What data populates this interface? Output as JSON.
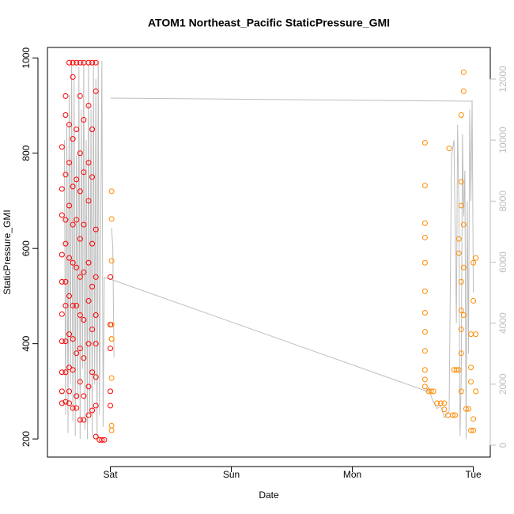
{
  "chart_data": {
    "type": "scatter",
    "title": "ATOM1 Northeast_Pacific StaticPressure_GMI",
    "xlabel": "Date",
    "ylabel": "StaticPressure_GMI",
    "xlim": [
      -0.52,
      3.14
    ],
    "xticks": [
      {
        "value": 0,
        "label": "Sat"
      },
      {
        "value": 1,
        "label": "Sun"
      },
      {
        "value": 2,
        "label": "Mon"
      },
      {
        "value": 3,
        "label": "Tue"
      }
    ],
    "ylim": [
      162,
      1022
    ],
    "yticks": [
      200,
      400,
      600,
      800,
      1000
    ],
    "y2lim": [
      -389,
      13037
    ],
    "y2ticks": [
      0,
      2000,
      4000,
      6000,
      8000,
      10000,
      12000
    ],
    "y2_axis_color": "#bebebe",
    "series": [
      {
        "color": "#ff0000",
        "x": [
          -0.4,
          -0.4,
          -0.4,
          -0.4,
          -0.4,
          -0.4,
          -0.4,
          -0.4,
          -0.4,
          -0.4,
          -0.37,
          -0.37,
          -0.37,
          -0.37,
          -0.37,
          -0.37,
          -0.37,
          -0.37,
          -0.37,
          -0.37,
          -0.34,
          -0.34,
          -0.34,
          -0.34,
          -0.34,
          -0.34,
          -0.34,
          -0.34,
          -0.34,
          -0.34,
          -0.31,
          -0.31,
          -0.31,
          -0.31,
          -0.31,
          -0.31,
          -0.31,
          -0.31,
          -0.31,
          -0.31,
          -0.28,
          -0.28,
          -0.28,
          -0.28,
          -0.28,
          -0.28,
          -0.28,
          -0.28,
          -0.28,
          -0.25,
          -0.25,
          -0.25,
          -0.25,
          -0.25,
          -0.25,
          -0.25,
          -0.25,
          -0.25,
          -0.25,
          -0.22,
          -0.22,
          -0.22,
          -0.22,
          -0.22,
          -0.22,
          -0.22,
          -0.22,
          -0.22,
          -0.18,
          -0.18,
          -0.18,
          -0.18,
          -0.18,
          -0.18,
          -0.18,
          -0.18,
          -0.18,
          -0.15,
          -0.15,
          -0.15,
          -0.15,
          -0.15,
          -0.15,
          -0.15,
          -0.15,
          -0.12,
          -0.12,
          -0.12,
          -0.12,
          -0.12,
          -0.12,
          -0.12,
          -0.12,
          -0.12,
          -0.09,
          -0.07,
          -0.05,
          0.0,
          0.0,
          0.0,
          0.0,
          0.0
        ],
        "values": [
          813,
          725,
          670,
          587,
          530,
          462,
          405,
          340,
          300,
          275,
          920,
          880,
          755,
          660,
          610,
          530,
          480,
          405,
          340,
          278,
          990,
          860,
          780,
          690,
          580,
          500,
          420,
          350,
          300,
          275,
          990,
          960,
          830,
          730,
          650,
          570,
          480,
          410,
          345,
          265,
          990,
          850,
          745,
          660,
          560,
          480,
          380,
          290,
          265,
          990,
          920,
          800,
          720,
          620,
          540,
          460,
          390,
          320,
          240,
          990,
          870,
          760,
          650,
          550,
          450,
          370,
          290,
          240,
          990,
          900,
          780,
          700,
          570,
          490,
          400,
          310,
          250,
          990,
          850,
          750,
          610,
          520,
          430,
          340,
          260,
          990,
          930,
          640,
          540,
          460,
          400,
          330,
          270,
          205,
          198,
          198,
          198,
          540,
          440,
          390,
          300,
          270
        ]
      },
      {
        "color": "#ff8c00",
        "x": [
          0.01,
          0.01,
          0.01,
          0.01,
          0.01,
          0.01,
          0.01,
          0.01,
          0.01,
          2.6,
          2.6,
          2.6,
          2.6,
          2.6,
          2.6,
          2.6,
          2.6,
          2.6,
          2.6,
          2.6,
          2.6,
          2.63,
          2.65,
          2.67,
          2.7,
          2.73,
          2.76,
          2.76,
          2.79,
          2.83,
          2.85,
          2.8,
          2.84,
          2.86,
          2.88,
          2.88,
          2.88,
          2.9,
          2.9,
          2.9,
          2.9,
          2.9,
          2.9,
          2.9,
          2.9,
          2.92,
          2.92,
          2.92,
          2.92,
          2.92,
          2.94,
          2.96,
          2.98,
          2.98,
          2.98,
          2.98,
          3.0,
          3.0,
          3.0,
          3.0,
          3.02,
          3.02,
          3.02
        ],
        "values": [
          720,
          662,
          574,
          440,
          410,
          410,
          328,
          228,
          218,
          822,
          732,
          653,
          623,
          570,
          510,
          465,
          425,
          385,
          345,
          325,
          310,
          300,
          300,
          300,
          275,
          275,
          275,
          262,
          250,
          250,
          250,
          810,
          345,
          345,
          345,
          590,
          620,
          880,
          740,
          690,
          530,
          470,
          430,
          380,
          300,
          970,
          930,
          650,
          560,
          460,
          263,
          263,
          420,
          350,
          320,
          218,
          570,
          490,
          242,
          218,
          580,
          420,
          300
        ]
      },
      {
        "type": "line",
        "axis": "y2",
        "color": "#bebebe",
        "x": [
          -0.38,
          -0.37,
          -0.36,
          -0.35,
          -0.34,
          -0.33,
          -0.32,
          -0.31,
          -0.3,
          -0.29,
          -0.28,
          -0.27,
          -0.26,
          -0.25,
          -0.24,
          -0.23,
          -0.22,
          -0.21,
          -0.2,
          -0.19,
          -0.18,
          -0.17,
          -0.16,
          -0.15,
          -0.14,
          -0.13,
          -0.12,
          -0.11,
          -0.1,
          -0.09,
          -0.07,
          -0.06,
          -0.05,
          0.0,
          2.62,
          2.63,
          2.66,
          2.7,
          2.73,
          2.76,
          2.8,
          2.82,
          2.84,
          2.86,
          2.87,
          2.88,
          2.89,
          2.9,
          2.91,
          2.92,
          2.93,
          2.94,
          2.95,
          2.96,
          2.97,
          2.98,
          2.99,
          3.0,
          null,
          0.01,
          0.02,
          0.03,
          null,
          0.0,
          2.99
        ],
        "values": [
          10000,
          1000,
          10500,
          400,
          11500,
          2000,
          12600,
          800,
          12000,
          300,
          9500,
          1500,
          12400,
          200,
          11000,
          2500,
          12600,
          500,
          10000,
          200,
          12500,
          1000,
          11000,
          300,
          12500,
          2000,
          12000,
          200,
          12600,
          1000,
          12600,
          600,
          5500,
          5443,
          1763,
          1900,
          1500,
          1200,
          1300,
          900,
          1100,
          9500,
          10000,
          4000,
          10500,
          8000,
          300,
          2200,
          10200,
          7500,
          9000,
          200,
          8000,
          3000,
          11000,
          8000,
          11300,
          5000,
          null,
          7128,
          6500,
          2877,
          null,
          11379,
          11275
        ]
      }
    ]
  }
}
